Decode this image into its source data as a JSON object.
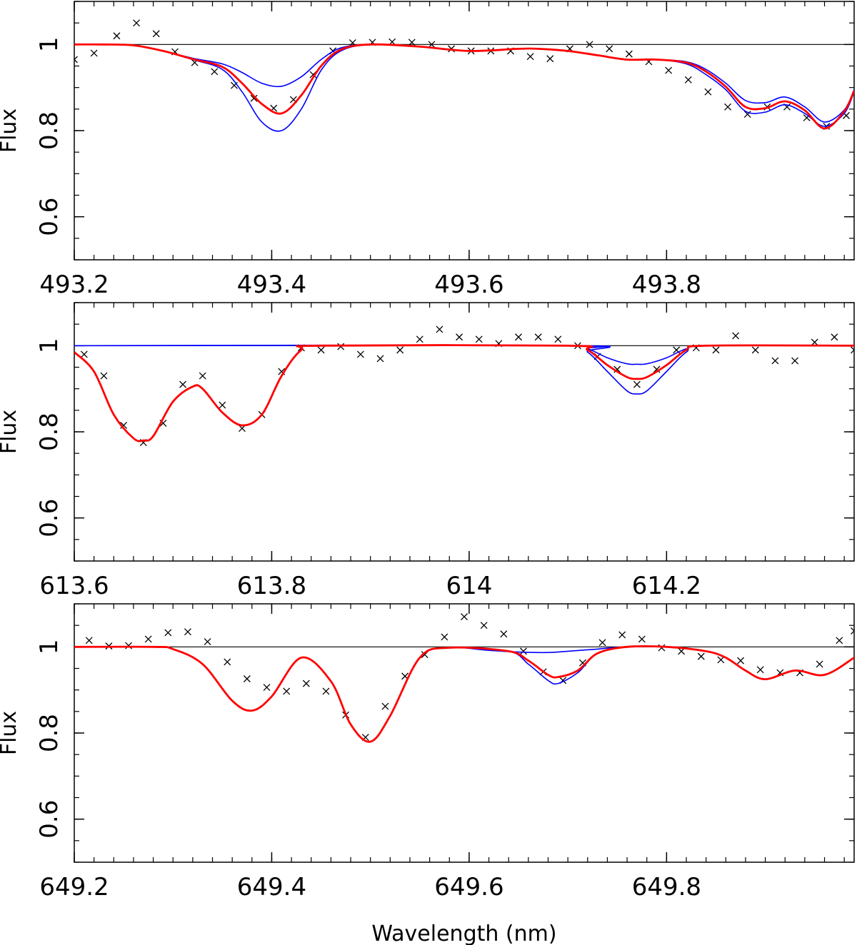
{
  "figure": {
    "xlabel": "Wavelength (nm)",
    "ylabel": "Flux"
  },
  "chart_data": [
    {
      "type": "line",
      "title": "",
      "xlabel": "",
      "ylabel": "Flux",
      "xlim": [
        493.2,
        493.99
      ],
      "ylim": [
        0.5,
        1.1
      ],
      "grid": false,
      "xticks": [
        "493.2",
        "493.4",
        "493.6",
        "493.8"
      ],
      "xtick_values": [
        493.2,
        493.4,
        493.6,
        493.8
      ],
      "yticks": [
        "0.6",
        "0.8",
        "1"
      ],
      "ytick_values": [
        0.6,
        0.8,
        1.0
      ],
      "series": [
        {
          "kind": "hline",
          "color": "#000000",
          "y": 1.0
        },
        {
          "kind": "observed",
          "color": "#000000",
          "x": [
            493.2,
            493.22,
            493.243,
            493.263,
            493.283,
            493.302,
            493.322,
            493.342,
            493.362,
            493.382,
            493.402,
            493.422,
            493.442,
            493.462,
            493.482,
            493.502,
            493.522,
            493.542,
            493.562,
            493.582,
            493.602,
            493.622,
            493.642,
            493.662,
            493.682,
            493.702,
            493.722,
            493.742,
            493.762,
            493.782,
            493.802,
            493.822,
            493.842,
            493.862,
            493.882,
            493.902,
            493.922,
            493.942,
            493.962,
            493.982
          ],
          "y": [
            0.965,
            0.98,
            1.02,
            1.05,
            1.025,
            0.983,
            0.958,
            0.937,
            0.905,
            0.875,
            0.852,
            0.872,
            0.93,
            0.985,
            1.004,
            1.005,
            1.006,
            1.005,
            1.0,
            0.99,
            0.985,
            0.985,
            0.985,
            0.972,
            0.967,
            0.99,
            1.0,
            0.99,
            0.978,
            0.96,
            0.94,
            0.918,
            0.89,
            0.855,
            0.838,
            0.855,
            0.855,
            0.83,
            0.81,
            0.835
          ]
        },
        {
          "kind": "model-high",
          "color": "#0000ff",
          "x": [
            493.2,
            493.23,
            493.26,
            493.29,
            493.32,
            493.35,
            493.37,
            493.39,
            493.41,
            493.43,
            493.45,
            493.47,
            493.5,
            493.55,
            493.6,
            493.65,
            493.67,
            493.7,
            493.73,
            493.76,
            493.79,
            493.82,
            493.84,
            493.86,
            493.88,
            493.9,
            493.92,
            493.94,
            493.96,
            493.98,
            493.99
          ],
          "y": [
            1.0,
            1.0,
            0.998,
            0.985,
            0.965,
            0.942,
            0.89,
            0.82,
            0.8,
            0.85,
            0.94,
            0.985,
            1.0,
            0.995,
            0.985,
            0.99,
            0.99,
            0.985,
            0.975,
            0.965,
            0.965,
            0.955,
            0.93,
            0.895,
            0.845,
            0.843,
            0.86,
            0.84,
            0.81,
            0.84,
            0.89
          ]
        },
        {
          "kind": "model-low",
          "color": "#0000ff",
          "x": [
            493.2,
            493.23,
            493.26,
            493.29,
            493.32,
            493.35,
            493.37,
            493.39,
            493.41,
            493.43,
            493.45,
            493.47,
            493.5,
            493.55,
            493.6,
            493.65,
            493.67,
            493.7,
            493.73,
            493.76,
            493.79,
            493.82,
            493.84,
            493.86,
            493.88,
            493.9,
            493.92,
            493.94,
            493.96,
            493.98,
            493.99
          ],
          "y": [
            1.0,
            1.0,
            0.998,
            0.985,
            0.968,
            0.955,
            0.935,
            0.91,
            0.903,
            0.925,
            0.965,
            0.992,
            1.0,
            0.995,
            0.985,
            0.99,
            0.99,
            0.985,
            0.975,
            0.965,
            0.965,
            0.96,
            0.942,
            0.91,
            0.87,
            0.865,
            0.878,
            0.855,
            0.82,
            0.848,
            0.895
          ]
        },
        {
          "kind": "model-best",
          "color": "#ff0000",
          "x": [
            493.2,
            493.23,
            493.26,
            493.29,
            493.32,
            493.35,
            493.37,
            493.39,
            493.41,
            493.43,
            493.45,
            493.47,
            493.5,
            493.55,
            493.6,
            493.65,
            493.67,
            493.7,
            493.73,
            493.76,
            493.79,
            493.82,
            493.84,
            493.86,
            493.88,
            493.9,
            493.92,
            493.94,
            493.96,
            493.98,
            493.99
          ],
          "y": [
            1.0,
            1.0,
            0.998,
            0.985,
            0.966,
            0.948,
            0.91,
            0.862,
            0.84,
            0.882,
            0.95,
            0.988,
            1.0,
            0.995,
            0.985,
            0.99,
            0.99,
            0.985,
            0.975,
            0.965,
            0.965,
            0.958,
            0.937,
            0.902,
            0.855,
            0.852,
            0.868,
            0.847,
            0.805,
            0.845,
            0.893
          ]
        }
      ]
    },
    {
      "type": "line",
      "title": "",
      "xlabel": "",
      "ylabel": "Flux",
      "xlim": [
        613.6,
        614.39
      ],
      "ylim": [
        0.5,
        1.1
      ],
      "grid": false,
      "xticks": [
        "613.6",
        "613.8",
        "614",
        "614.2"
      ],
      "xtick_values": [
        613.6,
        613.8,
        614.0,
        614.2
      ],
      "yticks": [
        "0.6",
        "0.8",
        "1"
      ],
      "ytick_values": [
        0.6,
        0.8,
        1.0
      ],
      "series": [
        {
          "kind": "hline",
          "color": "#000000",
          "y": 1.0
        },
        {
          "kind": "observed",
          "color": "#000000",
          "x": [
            613.61,
            613.63,
            613.65,
            613.67,
            613.69,
            613.71,
            613.73,
            613.75,
            613.77,
            613.79,
            613.81,
            613.83,
            613.85,
            613.87,
            613.89,
            613.91,
            613.93,
            613.95,
            613.97,
            613.99,
            614.01,
            614.03,
            614.05,
            614.07,
            614.09,
            614.11,
            614.13,
            614.15,
            614.17,
            614.19,
            614.21,
            614.23,
            614.25,
            614.27,
            614.29,
            614.31,
            614.33,
            614.35,
            614.37,
            614.39
          ],
          "y": [
            0.98,
            0.93,
            0.815,
            0.775,
            0.82,
            0.91,
            0.93,
            0.862,
            0.808,
            0.84,
            0.94,
            0.995,
            0.99,
            0.998,
            0.98,
            0.97,
            0.99,
            1.015,
            1.038,
            1.02,
            1.015,
            1.005,
            1.02,
            1.02,
            1.015,
            1.0,
            0.975,
            0.945,
            0.91,
            0.945,
            0.99,
            0.995,
            0.99,
            1.023,
            0.99,
            0.965,
            0.965,
            1.008,
            1.02,
            0.99
          ]
        },
        {
          "kind": "model-high",
          "color": "#0000ff",
          "x": [
            613.6,
            614.1,
            614.12,
            614.14,
            614.16,
            614.17,
            614.18,
            614.2,
            614.22,
            614.24,
            614.39
          ],
          "y": [
            1.0,
            1.0,
            0.985,
            0.94,
            0.895,
            0.888,
            0.895,
            0.94,
            0.985,
            1.0,
            1.0
          ]
        },
        {
          "kind": "model-low",
          "color": "#0000ff",
          "x": [
            613.6,
            614.1,
            614.12,
            614.14,
            614.16,
            614.17,
            614.18,
            614.2,
            614.22,
            614.24,
            614.39
          ],
          "y": [
            1.0,
            1.0,
            0.993,
            0.972,
            0.958,
            0.957,
            0.958,
            0.972,
            0.993,
            1.0,
            1.0
          ]
        },
        {
          "kind": "model-best",
          "color": "#ff0000",
          "x": [
            613.6,
            613.62,
            613.64,
            613.66,
            613.67,
            613.68,
            613.7,
            613.72,
            613.73,
            613.75,
            613.77,
            613.79,
            613.81,
            613.83,
            613.85,
            614.1,
            614.12,
            614.14,
            614.16,
            614.17,
            614.18,
            614.2,
            614.22,
            614.24,
            614.39
          ],
          "y": [
            0.985,
            0.94,
            0.84,
            0.785,
            0.78,
            0.79,
            0.87,
            0.905,
            0.9,
            0.845,
            0.815,
            0.84,
            0.93,
            0.99,
            1.0,
            1.0,
            0.99,
            0.955,
            0.927,
            0.923,
            0.927,
            0.955,
            0.99,
            1.0,
            1.0
          ]
        }
      ]
    },
    {
      "type": "line",
      "title": "",
      "xlabel": "Wavelength (nm)",
      "ylabel": "Flux",
      "xlim": [
        649.2,
        649.99
      ],
      "ylim": [
        0.5,
        1.1
      ],
      "grid": false,
      "xticks": [
        "649.2",
        "649.4",
        "649.6",
        "649.8"
      ],
      "xtick_values": [
        649.2,
        649.4,
        649.6,
        649.8
      ],
      "yticks": [
        "0.6",
        "0.8",
        "1"
      ],
      "ytick_values": [
        0.6,
        0.8,
        1.0
      ],
      "series": [
        {
          "kind": "hline",
          "color": "#000000",
          "y": 1.0
        },
        {
          "kind": "observed",
          "color": "#000000",
          "x": [
            649.215,
            649.235,
            649.255,
            649.275,
            649.295,
            649.315,
            649.335,
            649.355,
            649.375,
            649.395,
            649.415,
            649.435,
            649.455,
            649.475,
            649.495,
            649.515,
            649.535,
            649.555,
            649.575,
            649.595,
            649.615,
            649.635,
            649.655,
            649.675,
            649.695,
            649.715,
            649.735,
            649.755,
            649.775,
            649.795,
            649.815,
            649.835,
            649.855,
            649.875,
            649.895,
            649.915,
            649.935,
            649.955,
            649.975,
            649.99
          ],
          "y": [
            1.015,
            1.002,
            1.003,
            1.018,
            1.033,
            1.035,
            1.012,
            0.965,
            0.926,
            0.906,
            0.897,
            0.915,
            0.897,
            0.842,
            0.79,
            0.862,
            0.932,
            0.982,
            1.023,
            1.07,
            1.05,
            1.03,
            0.99,
            0.942,
            0.922,
            0.963,
            1.01,
            1.028,
            1.018,
            0.998,
            0.99,
            0.978,
            0.97,
            0.968,
            0.947,
            0.94,
            0.94,
            0.96,
            1.015,
            1.037
          ]
        },
        {
          "kind": "model-high",
          "color": "#0000ff",
          "x": [
            649.2,
            649.28,
            649.3,
            649.33,
            649.36,
            649.38,
            649.4,
            649.43,
            649.46,
            649.48,
            649.5,
            649.52,
            649.55,
            649.58,
            649.64,
            649.66,
            649.68,
            649.69,
            649.71,
            649.73,
            649.76,
            649.8,
            649.84,
            649.86,
            649.88,
            649.9,
            649.93,
            649.96,
            649.99
          ],
          "y": [
            1.0,
            1.0,
            0.995,
            0.96,
            0.875,
            0.852,
            0.885,
            0.975,
            0.92,
            0.82,
            0.78,
            0.84,
            0.975,
            0.998,
            0.99,
            0.96,
            0.922,
            0.915,
            0.94,
            0.985,
            1.0,
            1.0,
            0.99,
            0.975,
            0.945,
            0.925,
            0.945,
            0.935,
            0.975
          ]
        },
        {
          "kind": "model-low",
          "color": "#0000ff",
          "x": [
            649.2,
            649.28,
            649.3,
            649.33,
            649.36,
            649.38,
            649.4,
            649.43,
            649.46,
            649.48,
            649.5,
            649.52,
            649.55,
            649.58,
            649.62,
            649.65,
            649.68,
            649.7,
            649.73,
            649.76,
            649.8,
            649.84,
            649.86,
            649.88,
            649.9,
            649.93,
            649.96,
            649.99
          ],
          "y": [
            1.0,
            1.0,
            0.995,
            0.96,
            0.875,
            0.852,
            0.885,
            0.975,
            0.92,
            0.82,
            0.78,
            0.84,
            0.975,
            0.998,
            0.992,
            0.988,
            0.987,
            0.99,
            0.995,
            1.0,
            1.0,
            0.99,
            0.975,
            0.945,
            0.925,
            0.945,
            0.935,
            0.975
          ]
        },
        {
          "kind": "model-best",
          "color": "#ff0000",
          "x": [
            649.2,
            649.28,
            649.3,
            649.33,
            649.36,
            649.38,
            649.4,
            649.43,
            649.46,
            649.48,
            649.5,
            649.52,
            649.55,
            649.58,
            649.64,
            649.66,
            649.68,
            649.69,
            649.71,
            649.73,
            649.76,
            649.8,
            649.84,
            649.86,
            649.88,
            649.9,
            649.93,
            649.96,
            649.99
          ],
          "y": [
            1.0,
            1.0,
            0.995,
            0.96,
            0.875,
            0.852,
            0.885,
            0.975,
            0.92,
            0.82,
            0.78,
            0.84,
            0.975,
            0.998,
            0.99,
            0.968,
            0.935,
            0.93,
            0.945,
            0.985,
            1.0,
            1.0,
            0.99,
            0.975,
            0.945,
            0.925,
            0.945,
            0.935,
            0.975
          ]
        }
      ]
    }
  ]
}
